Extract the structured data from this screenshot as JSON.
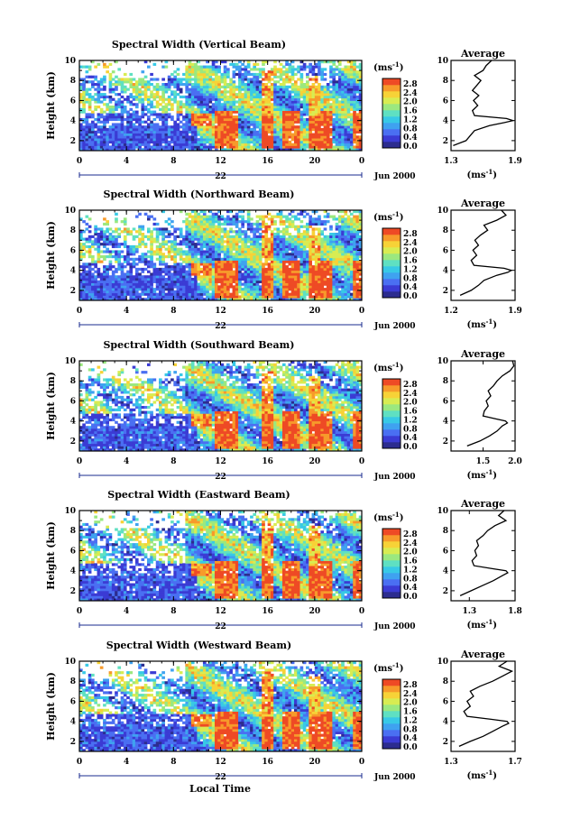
{
  "figure": {
    "xlabel": "Local Time",
    "day_label": "22",
    "month_label": "Jun 2000"
  },
  "chart_data": [
    {
      "type": "heatmap",
      "title": "Spectral Width (Vertical Beam)",
      "ylabel": "Height (km)",
      "ylim": [
        1,
        10
      ],
      "xlim": [
        0,
        24
      ],
      "x_ticks": [
        "0",
        "4",
        "8",
        "12",
        "16",
        "20",
        "0"
      ],
      "y_ticks": [
        "2",
        "4",
        "6",
        "8",
        "10"
      ],
      "colorbar": {
        "unit": "(ms",
        "exponent": "-1",
        "close": ")",
        "ticks": [
          "2.8",
          "2.4",
          "2.0",
          "1.6",
          "1.2",
          "0.8",
          "0.4",
          "0.0"
        ]
      },
      "profile": {
        "title": "Average",
        "xlim": [
          1.3,
          1.9
        ],
        "x_ticks": [
          "1.3",
          "1.9"
        ],
        "xlabel": "(ms",
        "y_ticks": [
          "2",
          "4",
          "6",
          "8",
          "10"
        ],
        "heights": [
          1.5,
          2,
          2.5,
          3,
          3.5,
          3.8,
          4.0,
          4.2,
          4.5,
          5,
          5.5,
          6,
          6.5,
          7,
          7.5,
          8,
          8.5,
          9,
          9.5,
          10
        ],
        "values": [
          1.32,
          1.44,
          1.48,
          1.52,
          1.66,
          1.8,
          1.88,
          1.82,
          1.52,
          1.5,
          1.55,
          1.51,
          1.56,
          1.5,
          1.54,
          1.58,
          1.52,
          1.6,
          1.63,
          1.68
        ]
      }
    },
    {
      "type": "heatmap",
      "title": "Spectral Width (Northward Beam)",
      "ylabel": "Height (km)",
      "ylim": [
        1,
        10
      ],
      "xlim": [
        0,
        24
      ],
      "x_ticks": [
        "0",
        "4",
        "8",
        "12",
        "16",
        "20",
        "0"
      ],
      "y_ticks": [
        "2",
        "4",
        "6",
        "8",
        "10"
      ],
      "colorbar": {
        "unit": "(ms",
        "exponent": "-1",
        "close": ")",
        "ticks": [
          "2.8",
          "2.4",
          "2.0",
          "1.6",
          "1.2",
          "0.8",
          "0.4",
          "0.0"
        ]
      },
      "profile": {
        "title": "Average",
        "xlim": [
          1.2,
          1.9
        ],
        "x_ticks": [
          "1.2",
          "1.9"
        ],
        "xlabel": "(ms",
        "y_ticks": [
          "2",
          "4",
          "6",
          "8",
          "10"
        ],
        "heights": [
          1.5,
          2,
          2.5,
          3,
          3.5,
          3.8,
          4.0,
          4.2,
          4.5,
          5,
          5.5,
          6,
          6.5,
          7,
          7.5,
          8,
          8.5,
          9,
          9.5,
          10
        ],
        "values": [
          1.3,
          1.42,
          1.5,
          1.56,
          1.7,
          1.82,
          1.86,
          1.78,
          1.45,
          1.42,
          1.48,
          1.44,
          1.5,
          1.46,
          1.52,
          1.6,
          1.56,
          1.7,
          1.8,
          1.75
        ]
      }
    },
    {
      "type": "heatmap",
      "title": "Spectral Width (Southward Beam)",
      "ylabel": "Height (km)",
      "ylim": [
        1,
        10
      ],
      "xlim": [
        0,
        24
      ],
      "x_ticks": [
        "0",
        "4",
        "8",
        "12",
        "16",
        "20",
        "0"
      ],
      "y_ticks": [
        "2",
        "4",
        "6",
        "8",
        "10"
      ],
      "colorbar": {
        "unit": "(ms",
        "exponent": "-1",
        "close": ")",
        "ticks": [
          "2.8",
          "2.4",
          "2.0",
          "1.6",
          "1.2",
          "0.8",
          "0.4",
          "0.0"
        ]
      },
      "profile": {
        "title": "Average",
        "xlim": [
          1.0,
          2.0
        ],
        "x_ticks": [
          "1.5",
          "2.0"
        ],
        "xlabel": "(ms",
        "y_ticks": [
          "2",
          "4",
          "6",
          "8",
          "10"
        ],
        "heights": [
          1.5,
          2,
          2.5,
          3,
          3.5,
          3.8,
          4.0,
          4.2,
          4.5,
          5,
          5.5,
          6,
          6.5,
          7,
          7.5,
          8,
          8.5,
          9,
          9.5,
          10
        ],
        "values": [
          1.25,
          1.45,
          1.6,
          1.72,
          1.8,
          1.88,
          1.85,
          1.7,
          1.5,
          1.52,
          1.58,
          1.55,
          1.62,
          1.58,
          1.66,
          1.72,
          1.8,
          1.92,
          1.98,
          1.96
        ]
      }
    },
    {
      "type": "heatmap",
      "title": "Spectral Width (Eastward Beam)",
      "ylabel": "Height (km)",
      "ylim": [
        1,
        10
      ],
      "xlim": [
        0,
        24
      ],
      "x_ticks": [
        "0",
        "4",
        "8",
        "12",
        "16",
        "20",
        "0"
      ],
      "y_ticks": [
        "2",
        "4",
        "6",
        "8",
        "10"
      ],
      "colorbar": {
        "unit": "(ms",
        "exponent": "-1",
        "close": ")",
        "ticks": [
          "2.8",
          "2.4",
          "2.0",
          "1.6",
          "1.2",
          "0.8",
          "0.4",
          "0.0"
        ]
      },
      "profile": {
        "title": "Average",
        "xlim": [
          1.1,
          1.8
        ],
        "x_ticks": [
          "1.3",
          "1.8"
        ],
        "xlabel": "(ms",
        "y_ticks": [
          "2",
          "4",
          "6",
          "8",
          "10"
        ],
        "heights": [
          1.5,
          2,
          2.5,
          3,
          3.5,
          3.8,
          4.0,
          4.2,
          4.5,
          5,
          5.5,
          6,
          6.5,
          7,
          7.5,
          8,
          8.5,
          9,
          9.5,
          10
        ],
        "values": [
          1.2,
          1.32,
          1.44,
          1.56,
          1.66,
          1.72,
          1.7,
          1.55,
          1.35,
          1.33,
          1.38,
          1.36,
          1.4,
          1.38,
          1.45,
          1.5,
          1.58,
          1.7,
          1.62,
          1.68
        ]
      }
    },
    {
      "type": "heatmap",
      "title": "Spectral Width (Westward Beam)",
      "ylabel": "Height (km)",
      "ylim": [
        1,
        10
      ],
      "xlim": [
        0,
        24
      ],
      "x_ticks": [
        "0",
        "4",
        "8",
        "12",
        "16",
        "20",
        "0"
      ],
      "y_ticks": [
        "2",
        "4",
        "6",
        "8",
        "10"
      ],
      "colorbar": {
        "unit": "(ms",
        "exponent": "-1",
        "close": ")",
        "ticks": [
          "2.8",
          "2.4",
          "2.0",
          "1.6",
          "1.2",
          "0.8",
          "0.4",
          "0.0"
        ]
      },
      "profile": {
        "title": "Average",
        "xlim": [
          1.3,
          1.7
        ],
        "x_ticks": [
          "1.3",
          "1.7"
        ],
        "xlabel": "(ms",
        "y_ticks": [
          "2",
          "4",
          "6",
          "8",
          "10"
        ],
        "heights": [
          1.5,
          2,
          2.5,
          3,
          3.5,
          3.8,
          4.0,
          4.2,
          4.5,
          5,
          5.5,
          6,
          6.5,
          7,
          7.5,
          8,
          8.5,
          9,
          9.5,
          10
        ],
        "values": [
          1.35,
          1.42,
          1.5,
          1.56,
          1.62,
          1.66,
          1.65,
          1.55,
          1.4,
          1.38,
          1.42,
          1.4,
          1.44,
          1.42,
          1.48,
          1.56,
          1.62,
          1.68,
          1.6,
          1.65
        ]
      }
    }
  ]
}
